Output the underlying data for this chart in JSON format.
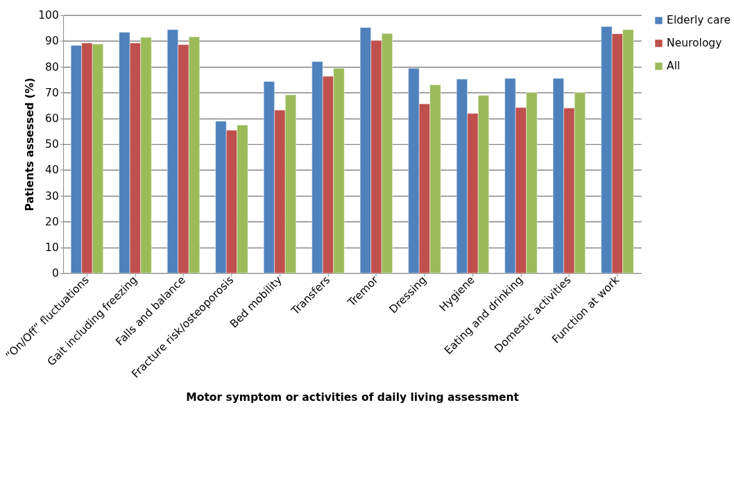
{
  "chart_data": {
    "type": "bar",
    "xlabel": "Motor symptom or activities of daily living assessment",
    "ylabel": "Patients assessed (%)",
    "categories": [
      "“On/Off” fluctuations",
      "Gait including freezing",
      "Falls and balance",
      "Fracture risk/osteoporosis",
      "Bed mobility",
      "Transfers",
      "Tremor",
      "Dressing",
      "Hygiene",
      "Eating and drinking",
      "Domestic activities",
      "Function at work"
    ],
    "series": [
      {
        "name": "Elderly care",
        "color": "#4f81bd",
        "values": [
          88.3,
          93.4,
          94.4,
          58.9,
          74.3,
          82.0,
          95.2,
          79.4,
          75.2,
          75.5,
          75.5,
          95.6
        ]
      },
      {
        "name": "Neurology",
        "color": "#c0504d",
        "values": [
          89.2,
          89.2,
          88.6,
          55.4,
          63.2,
          76.3,
          90.2,
          65.6,
          61.9,
          64.2,
          64.0,
          92.8
        ]
      },
      {
        "name": "All",
        "color": "#9bbb59",
        "values": [
          88.8,
          91.4,
          91.6,
          57.4,
          69.1,
          79.4,
          92.9,
          73.0,
          68.9,
          70.0,
          70.0,
          94.4
        ]
      }
    ],
    "ylim": [
      0,
      100
    ],
    "yticks": [
      0,
      10,
      20,
      30,
      40,
      50,
      60,
      70,
      80,
      90,
      100
    ],
    "grid": "y",
    "legend": "right"
  }
}
